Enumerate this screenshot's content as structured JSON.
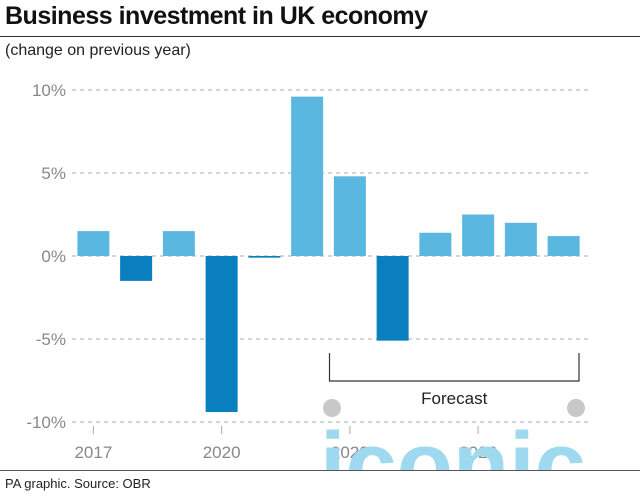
{
  "title": "Business investment in UK economy",
  "subtitle": "(change on previous year)",
  "source": "PA graphic. Source: OBR",
  "watermark_text": "iconic",
  "colors": {
    "positive": "#5ab7e0",
    "negative": "#0a7fbf",
    "grid": "#aaaaaa",
    "axis_text": "#888888",
    "watermark": "#9fd9ef",
    "watermark_dot": "#c8c8c8"
  },
  "chart_data": {
    "type": "bar",
    "x": [
      2017,
      2018,
      2019,
      2020,
      2021,
      2022,
      2023,
      2024,
      2025,
      2026,
      2027,
      2028
    ],
    "values": [
      1.5,
      -1.5,
      1.5,
      -9.4,
      -0.1,
      9.6,
      4.8,
      -5.1,
      1.4,
      2.5,
      2.0,
      1.2
    ],
    "ylim": [
      -10,
      10
    ],
    "yticks": [
      10,
      5,
      0,
      -5,
      -10
    ],
    "ytick_labels": [
      "10%",
      "5%",
      "0%",
      "-5%",
      "-10%"
    ],
    "xtick_labels": [
      {
        "year": 2017,
        "label": "2017"
      },
      {
        "year": 2020,
        "label": "2020"
      },
      {
        "year": 2023,
        "label": "2023"
      },
      {
        "year": 2026,
        "label": "2026"
      }
    ],
    "annotations": [
      {
        "label": "Forecast",
        "from": 2023,
        "to": 2028
      }
    ],
    "grid": true,
    "xlabel": "",
    "ylabel": ""
  }
}
